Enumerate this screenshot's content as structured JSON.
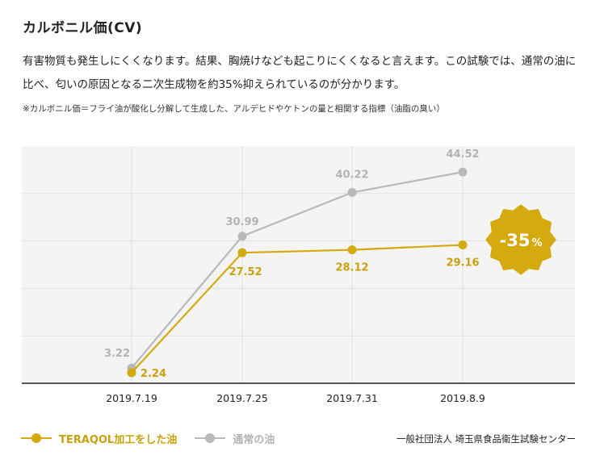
{
  "header": {
    "title": "カルボニル価(CV)",
    "description": "有害物質も発生しにくくなります。結果、胸焼けなども起こりにくくなると言えます。この試験では、通常の油に比べ、匂いの原因となる二次生成物を約35%抑えられているのが分かります。",
    "note": "※カルボニル価＝フライ油が酸化し分解して生成した、アルデヒドやケトンの量と相関する指標（油脂の臭い）"
  },
  "badge": {
    "number": "-35",
    "unit": "%",
    "color": "#d4aa0e"
  },
  "legend": {
    "items": [
      {
        "label": "TERAQOL加工をした油",
        "color": "#d4aa0e"
      },
      {
        "label": "通常の油",
        "color": "#b9b9b9"
      }
    ]
  },
  "source": "一般社団法人 埼玉県食品衛生試験センター",
  "chart_data": {
    "type": "line",
    "categories": [
      "2019.7.19",
      "2019.7.25",
      "2019.7.31",
      "2019.8.9"
    ],
    "ylim": [
      0,
      50
    ],
    "grid": true,
    "legend_position": "bottom-left",
    "series": [
      {
        "name": "TERAQOL加工をした油",
        "color": "#d4aa0e",
        "values": [
          2.24,
          27.52,
          28.12,
          29.16
        ],
        "labels": [
          "2.24",
          "27.52",
          "28.12",
          "29.16"
        ]
      },
      {
        "name": "通常の油",
        "color": "#b9b9b9",
        "values": [
          3.22,
          30.99,
          40.22,
          44.52
        ],
        "labels": [
          "3.22",
          "30.99",
          "40.22",
          "44.52"
        ]
      }
    ]
  }
}
